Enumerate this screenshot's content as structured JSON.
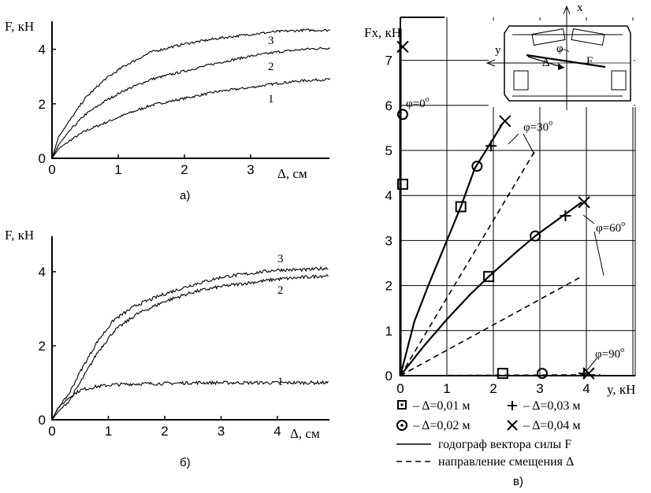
{
  "chart_data": [
    {
      "id": "a",
      "type": "line",
      "caption": "а)",
      "ylabel": "F, кН",
      "xlabel": "Δ, см",
      "xlim": [
        0,
        4.2
      ],
      "ylim": [
        0,
        5
      ],
      "xticks": [
        "0",
        "1",
        "2",
        "3"
      ],
      "yticks": [
        "0",
        "2",
        "4"
      ],
      "series": [
        {
          "name": "1",
          "x": [
            0,
            0.1,
            0.3,
            0.5,
            0.8,
            1.1,
            1.5,
            2.0,
            2.5,
            3.0,
            3.4,
            3.8,
            4.2
          ],
          "y": [
            0,
            0.35,
            0.7,
            1.0,
            1.3,
            1.6,
            1.95,
            2.2,
            2.45,
            2.6,
            2.75,
            2.85,
            2.9
          ]
        },
        {
          "name": "2",
          "x": [
            0,
            0.1,
            0.3,
            0.5,
            0.8,
            1.1,
            1.5,
            2.0,
            2.5,
            3.0,
            3.4,
            3.8,
            4.2
          ],
          "y": [
            0,
            0.5,
            1.1,
            1.6,
            2.1,
            2.5,
            2.9,
            3.2,
            3.5,
            3.75,
            3.9,
            4.0,
            4.05
          ]
        },
        {
          "name": "3",
          "x": [
            0,
            0.1,
            0.3,
            0.5,
            0.8,
            1.1,
            1.5,
            2.0,
            2.5,
            3.0,
            3.4,
            3.8,
            4.2
          ],
          "y": [
            0,
            0.8,
            1.5,
            2.2,
            2.9,
            3.4,
            3.9,
            4.2,
            4.4,
            4.55,
            4.65,
            4.7,
            4.7
          ]
        }
      ]
    },
    {
      "id": "b",
      "type": "line",
      "caption": "б)",
      "ylabel": "F, кН",
      "xlabel": "Δ, см",
      "xlim": [
        0,
        4.9
      ],
      "ylim": [
        0,
        5
      ],
      "xticks": [
        "0",
        "1",
        "2",
        "3",
        "4"
      ],
      "yticks": [
        "0",
        "2",
        "4"
      ],
      "series": [
        {
          "name": "1",
          "x": [
            0,
            0.1,
            0.3,
            0.5,
            0.8,
            1.1,
            1.5,
            2.0,
            2.5,
            3.0,
            3.5,
            4.0,
            4.5,
            4.9
          ],
          "y": [
            0,
            0.3,
            0.6,
            0.8,
            0.9,
            0.95,
            0.97,
            0.98,
            1.0,
            1.0,
            1.0,
            1.0,
            1.0,
            1.0
          ]
        },
        {
          "name": "2",
          "x": [
            0,
            0.1,
            0.3,
            0.5,
            0.8,
            1.1,
            1.5,
            2.0,
            2.5,
            3.0,
            3.5,
            4.0,
            4.5,
            4.9
          ],
          "y": [
            0,
            0.2,
            0.5,
            1.0,
            1.8,
            2.4,
            2.85,
            3.2,
            3.45,
            3.6,
            3.7,
            3.8,
            3.85,
            3.9
          ]
        },
        {
          "name": "3",
          "x": [
            0,
            0.1,
            0.3,
            0.5,
            0.8,
            1.1,
            1.5,
            2.0,
            2.5,
            3.0,
            3.5,
            4.0,
            4.5,
            4.9
          ],
          "y": [
            0,
            0.3,
            0.7,
            1.3,
            2.1,
            2.7,
            3.1,
            3.4,
            3.65,
            3.85,
            3.95,
            4.05,
            4.05,
            4.1
          ]
        }
      ]
    },
    {
      "id": "c",
      "type": "scatter",
      "caption": "в)",
      "ylabel": "Fx, кН",
      "xlabel": "y, кН",
      "xlim": [
        0,
        4.3
      ],
      "ylim": [
        0,
        7.7
      ],
      "xticks": [
        "0",
        "1",
        "2",
        "3",
        "4"
      ],
      "yticks": [
        "0",
        "1",
        "2",
        "3",
        "4",
        "5",
        "6",
        "7"
      ],
      "grid": true,
      "hodograph": [
        {
          "phi": "φ=0°",
          "points": []
        },
        {
          "phi": "φ=30°",
          "x": [
            0,
            0.3,
            0.6,
            1.0,
            1.3,
            1.6,
            1.9,
            2.2
          ],
          "y": [
            0,
            1.2,
            2.0,
            3.0,
            3.75,
            4.6,
            5.1,
            5.6
          ]
        },
        {
          "phi": "φ=60°",
          "x": [
            0,
            0.5,
            1.0,
            1.5,
            1.9,
            2.5,
            2.9,
            3.5,
            3.9
          ],
          "y": [
            0,
            0.65,
            1.25,
            1.8,
            2.2,
            2.75,
            3.1,
            3.55,
            3.85
          ]
        }
      ],
      "shift_direction": [
        {
          "phi": "φ=30°",
          "x": [
            0,
            2.9
          ],
          "y": [
            0,
            5.0
          ]
        },
        {
          "phi": "φ=60°",
          "x": [
            0,
            3.9
          ],
          "y": [
            0,
            2.2
          ]
        }
      ],
      "points": [
        {
          "delta": "Δ=0,01 м",
          "marker": "square",
          "x": [
            0.05,
            1.3,
            1.9,
            2.2
          ],
          "y": [
            4.25,
            3.75,
            2.2,
            0.05
          ]
        },
        {
          "delta": "Δ=0,02 м",
          "marker": "circle",
          "x": [
            0.05,
            1.65,
            2.9,
            3.05
          ],
          "y": [
            5.8,
            4.65,
            3.1,
            0.05
          ]
        },
        {
          "delta": "Δ=0,03 м",
          "marker": "plus",
          "x": [
            1.95,
            3.55,
            3.95
          ],
          "y": [
            5.1,
            3.55,
            0.05
          ]
        },
        {
          "delta": "Δ=0,04 м",
          "marker": "cross",
          "x": [
            0.05,
            2.25,
            3.95,
            4.05
          ],
          "y": [
            7.3,
            5.65,
            3.85,
            0.05
          ]
        }
      ],
      "angle_labels": [
        "φ=0",
        "φ=30",
        "φ=60",
        "φ=90"
      ],
      "angle_superscript": "o",
      "legend": {
        "markers": [
          {
            "marker": "square",
            "text": "– Δ=0,01 м"
          },
          {
            "marker": "plus",
            "text": "– Δ=0,03 м"
          },
          {
            "marker": "circle",
            "text": "– Δ=0,02 м"
          },
          {
            "marker": "cross",
            "text": "– Δ=0,04 м"
          }
        ],
        "lines": [
          {
            "style": "solid",
            "text": "годограф вектора силы F"
          },
          {
            "style": "dashed",
            "text": "направление смещения Δ"
          }
        ]
      },
      "inset": {
        "axis_x": "x",
        "axis_y": "y",
        "angle": "φ",
        "delta": "Δ",
        "force": "F"
      }
    }
  ]
}
